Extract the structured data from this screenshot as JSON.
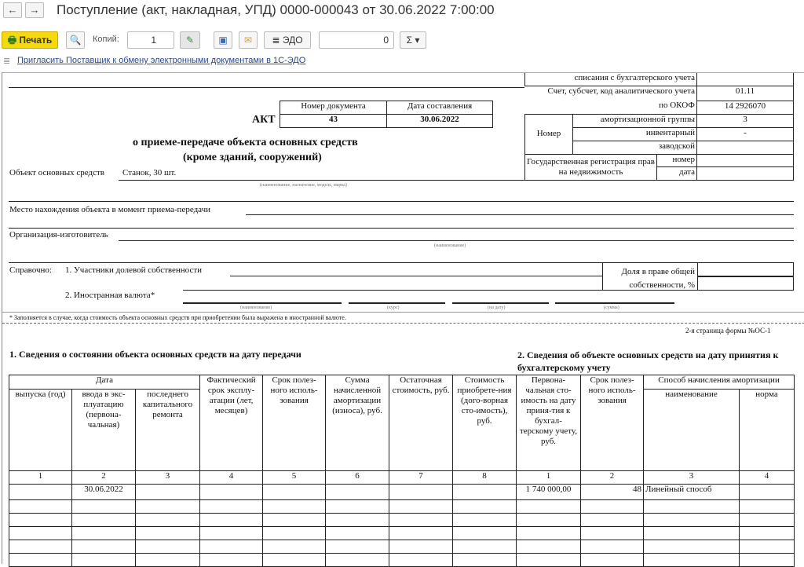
{
  "window": {
    "title": "Поступление (акт, накладная, УПД) 0000-000043 от 30.06.2022 7:00:00",
    "back": "←",
    "forward": "→"
  },
  "toolbar": {
    "print": "Печать",
    "copies_label": "Копий:",
    "copies": "1",
    "edo": "ЭДО",
    "sum": "0",
    "sigma": "Σ ▾"
  },
  "edo_link": "Пригласить Поставщик к обмену электронными документами в 1С-ЭДО",
  "form": {
    "right_block": {
      "row1": "списания с бухгалтерского учета",
      "account_label": "Счет, субсчет, код аналитического учета",
      "account": "01.11",
      "okof_label": "по ОКОФ",
      "okof": "14 2926070",
      "number_label": "Номер",
      "amort_group_label": "амортизационной группы",
      "amort_group": "3",
      "inventory_label": "инвентарный",
      "inventory": "-",
      "factory_label": "заводской",
      "factory": "",
      "reg_label": "Государственная регистрация прав на недвижимость",
      "reg_number_label": "номер",
      "reg_date_label": "дата"
    },
    "doc_number_label": "Номер документа",
    "doc_date_label": "Дата составления",
    "doc_number": "43",
    "doc_date": "30.06.2022",
    "act": "АКТ",
    "subtitle1": "о приеме-передаче объекта основных средств",
    "subtitle2": "(кроме зданий, сооружений)",
    "object_label": "Объект основных средств",
    "object_value": "Станок, 30 шт.",
    "object_hint": "(наименование, назначение, модель, марка)",
    "location_label": "Место нахождения объекта в момент приема-передачи",
    "manufacturer_label": "Организация-изготовитель",
    "manufacturer_hint": "(наименование)",
    "reference_label": "Справочно:",
    "shared_label": "1. Участники долевой собственности",
    "share_label": "Доля в праве общей собственности, %",
    "currency_label": "2. Иностранная валюта*",
    "cur_hints": [
      "(наименование)",
      "(курс)",
      "(на дату)",
      "(сумма)"
    ],
    "footnote": "* Заполняется в случае, когда стоимость объекта основных средств при приобретении была выражена в иностранной валюте.",
    "page2": "2-я страница формы №ОС-1",
    "section1": "1. Сведения о состоянии объекта основных средств на дату передачи",
    "section2": "2. Сведения об объекте  основных  средств  на дату принятия к бухгалтерскому учету",
    "table": {
      "date_group": "Дата",
      "method_group": "Способ начисления амортизации",
      "headers": [
        "выпуска (год)",
        "ввода в экс-плуатацию (первона-чальная)",
        "последнего капитального ремонта",
        "Фактический срок эксплу-атации (лет, месяцев)",
        "Срок полез-ного исполь-зования",
        "Сумма начисленной амортизации (износа), руб.",
        "Остаточная стоимость, руб.",
        "Стоимость приобрете-ния (дого-ворная сто-имость), руб.",
        "Первона-чальная сто-имость на дату приня-тия к бухгал-терскому учету, руб.",
        "Срок полез-ного исполь-зования",
        "наименование",
        "норма"
      ],
      "numbers": [
        "1",
        "2",
        "3",
        "4",
        "5",
        "6",
        "7",
        "8",
        "1",
        "2",
        "3",
        "4"
      ],
      "rows": [
        [
          "",
          "30.06.2022",
          "",
          "",
          "",
          "",
          "",
          "",
          "1 740 000,00",
          "48",
          "Линейный способ",
          ""
        ]
      ]
    }
  }
}
